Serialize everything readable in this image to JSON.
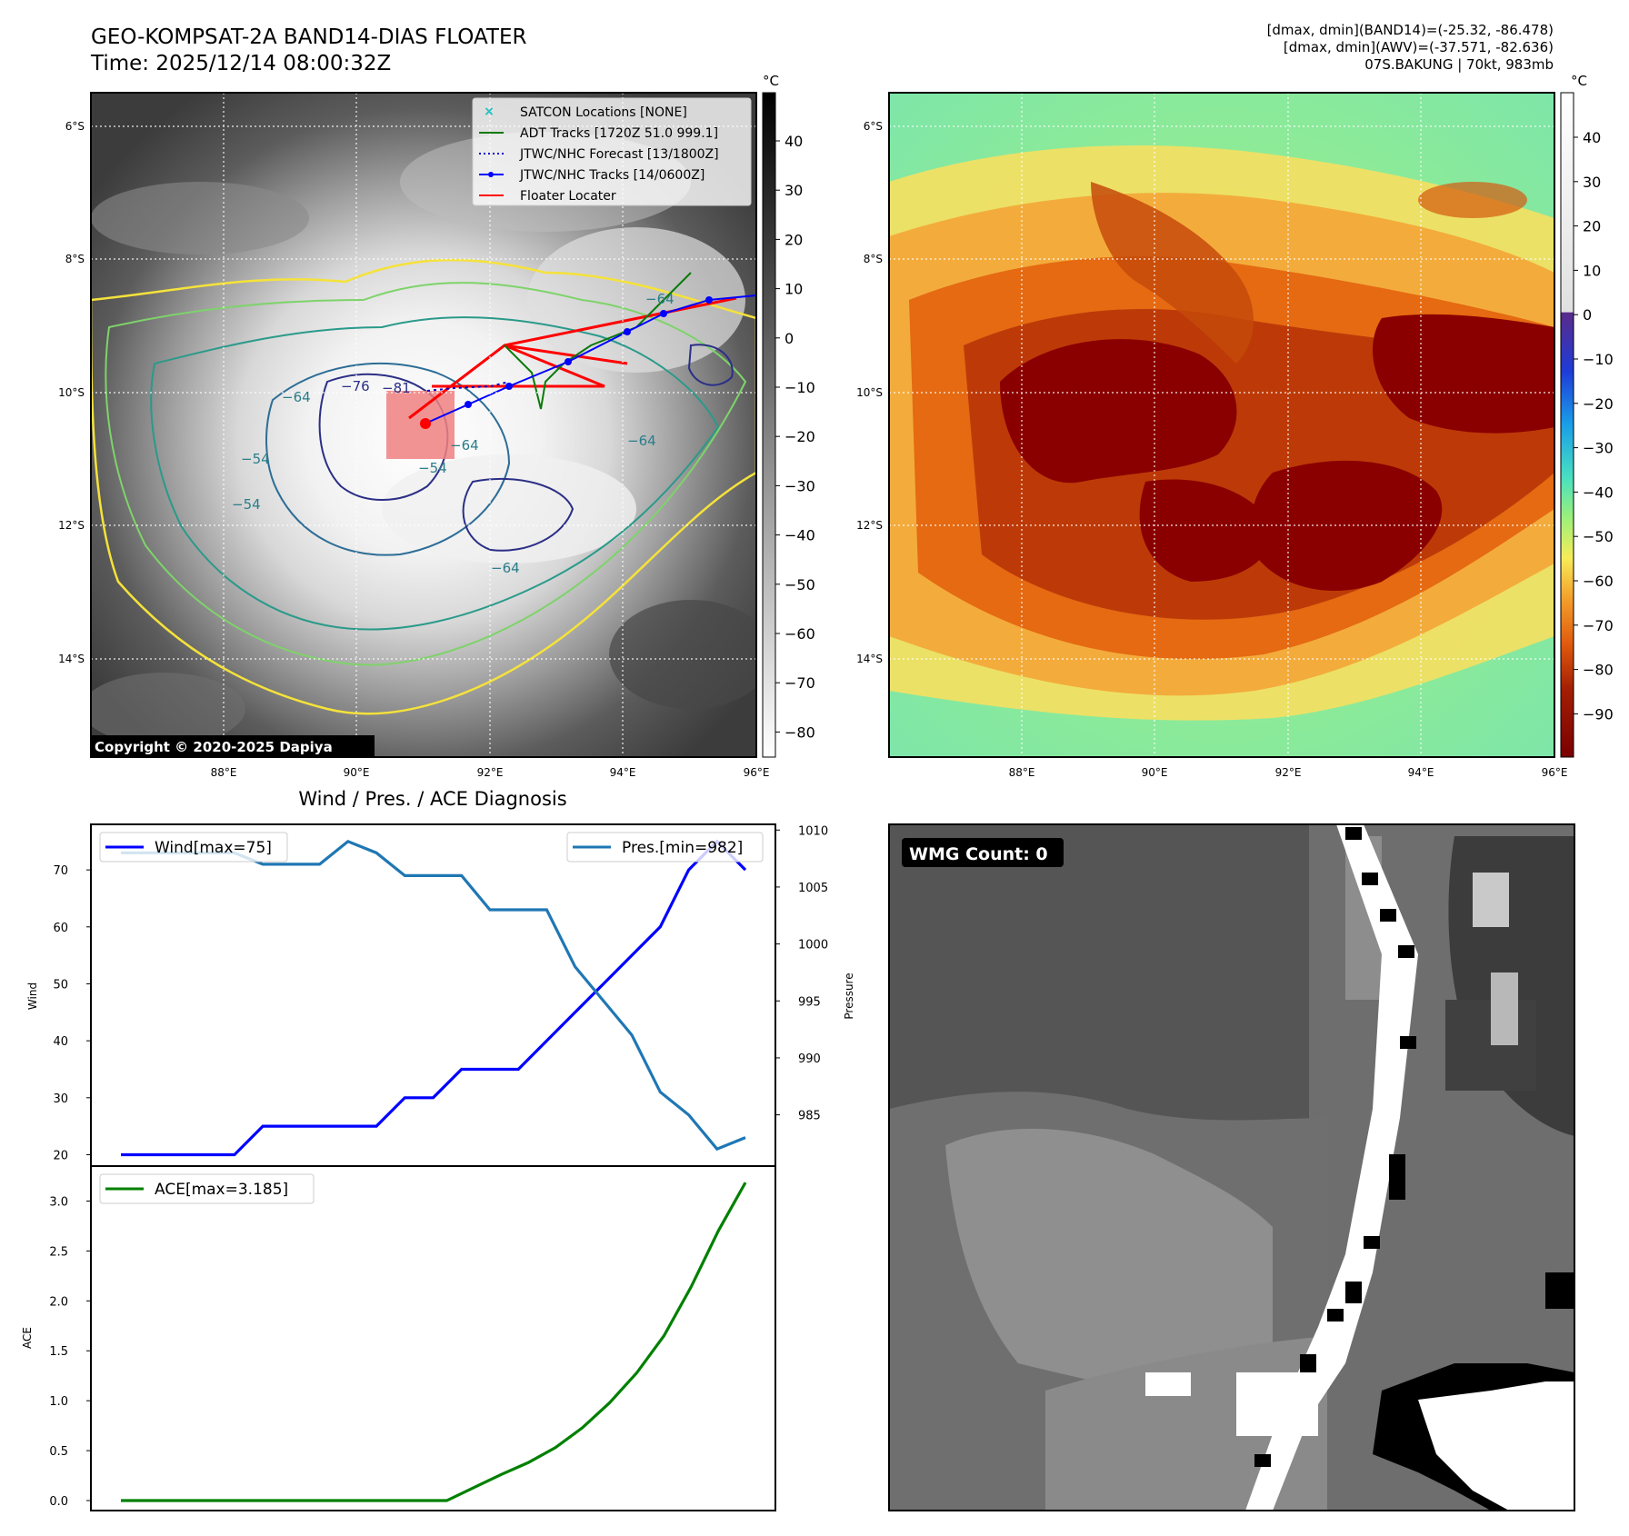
{
  "ir_panel": {
    "title_line1": "GEO-KOMPSAT-2A BAND14-DIAS FLOATER",
    "title_line2": "Time: 2025/12/14 08:00:32Z",
    "colorbar_unit": "°C",
    "colorbar_ticks": [
      "40",
      "30",
      "20",
      "10",
      "0",
      "−10",
      "−20",
      "−30",
      "−40",
      "−50",
      "−60",
      "−70",
      "−80"
    ],
    "lat_labels": [
      "6°S",
      "8°S",
      "10°S",
      "12°S",
      "14°S"
    ],
    "lon_labels": [
      "88°E",
      "90°E",
      "92°E",
      "94°E",
      "96°E"
    ],
    "contour_labels": [
      "−64",
      "−76",
      "−81",
      "−64",
      "−54",
      "−54",
      "−64",
      "−64",
      "−64",
      "−54"
    ],
    "copyright": "Copyright © 2020-2025 Dapiya",
    "legend": [
      {
        "label": "SATCON Locations [NONE]",
        "color": "#1fbfbf"
      },
      {
        "label": "ADT Tracks [1720Z 51.0 999.1]",
        "color": "#0a7a0a"
      },
      {
        "label": "JTWC/NHC Forecast [13/1800Z]",
        "color": "#0000cc"
      },
      {
        "label": "JTWC/NHC Tracks [14/0600Z]",
        "color": "#0000ff"
      },
      {
        "label": "Floater Locater",
        "color": "#ff0000"
      }
    ]
  },
  "awv_panel": {
    "info_line1": "[dmax, dmin](BAND14)=(-25.32, -86.478)",
    "info_line2": "[dmax, dmin](AWV)=(-37.571, -82.636)",
    "info_line3": "07S.BAKUNG | 70kt, 983mb",
    "colorbar_unit": "°C",
    "colorbar_ticks": [
      "40",
      "30",
      "20",
      "10",
      "0",
      "−10",
      "−20",
      "−30",
      "−40",
      "−50",
      "−60",
      "−70",
      "−80",
      "−90"
    ],
    "lat_labels": [
      "6°S",
      "8°S",
      "10°S",
      "12°S",
      "14°S"
    ],
    "lon_labels": [
      "88°E",
      "90°E",
      "92°E",
      "94°E",
      "96°E"
    ]
  },
  "chart_data": [
    {
      "type": "line",
      "title": "Wind / Pres. / ACE Diagnosis",
      "ylabel": "Wind",
      "ylabel_right": "Pressure",
      "ylim": [
        18,
        78
      ],
      "ylim_right": [
        980.5,
        1010.5
      ],
      "yticks": [
        20,
        30,
        40,
        50,
        60,
        70
      ],
      "yticks_right": [
        985,
        990,
        995,
        1000,
        1005,
        1010
      ],
      "series": [
        {
          "name": "Wind[max=75]",
          "color": "#0000ff",
          "axis": "left",
          "values": [
            20,
            20,
            20,
            20,
            20,
            25,
            25,
            25,
            25,
            25,
            30,
            30,
            35,
            35,
            35,
            40,
            45,
            50,
            55,
            60,
            70,
            75,
            70
          ]
        },
        {
          "name": "Pres.[min=982]",
          "color": "#1f77b4",
          "axis": "right",
          "values": [
            1008,
            1008,
            1008,
            1008,
            1008,
            1007,
            1007,
            1007,
            1009,
            1008,
            1006,
            1006,
            1006,
            1003,
            1003,
            1003,
            998,
            995,
            992,
            987,
            985,
            982,
            983
          ]
        }
      ]
    },
    {
      "type": "line",
      "ylabel": "ACE",
      "ylim": [
        -0.1,
        3.35
      ],
      "yticks": [
        "0.0",
        "0.5",
        "1.0",
        "1.5",
        "2.0",
        "2.5",
        "3.0"
      ],
      "series": [
        {
          "name": "ACE[max=3.185]",
          "color": "#008000",
          "values": [
            0,
            0,
            0,
            0,
            0,
            0,
            0,
            0,
            0,
            0,
            0,
            0,
            0,
            0.13,
            0.26,
            0.38,
            0.53,
            0.73,
            0.98,
            1.28,
            1.65,
            2.14,
            2.7,
            3.185
          ]
        }
      ]
    }
  ],
  "wmg_panel": {
    "badge": "WMG Count: 0"
  }
}
